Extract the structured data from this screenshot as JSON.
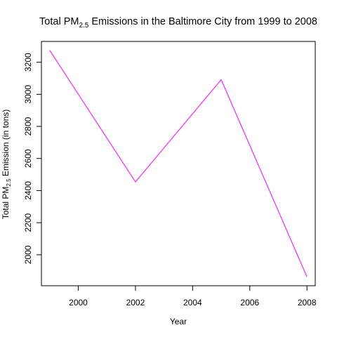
{
  "chart_data": {
    "type": "line",
    "title": {
      "prefix": "Total PM",
      "subscript": "2.5",
      "suffix": " Emissions in the Baltimore City from 1999 to 2008"
    },
    "xlabel": "Year",
    "ylabel": {
      "prefix": "Total PM",
      "subscript": "2.5",
      "suffix": " Emission (in tons)"
    },
    "x": [
      1999,
      2002,
      2005,
      2008
    ],
    "series": [
      {
        "values": [
          3274.18,
          2453.92,
          3091.35,
          1862.28
        ],
        "color": "#ff00ff"
      }
    ],
    "xlim": [
      1998.71,
      2008.29
    ],
    "ylim": [
      1806.84,
      3329.62
    ],
    "xticks": [
      "2000",
      "2002",
      "2004",
      "2006",
      "2008"
    ],
    "yticks": [
      "2000",
      "2200",
      "2400",
      "2600",
      "2800",
      "3000",
      "3200"
    ],
    "grid": false,
    "legend": "none"
  }
}
